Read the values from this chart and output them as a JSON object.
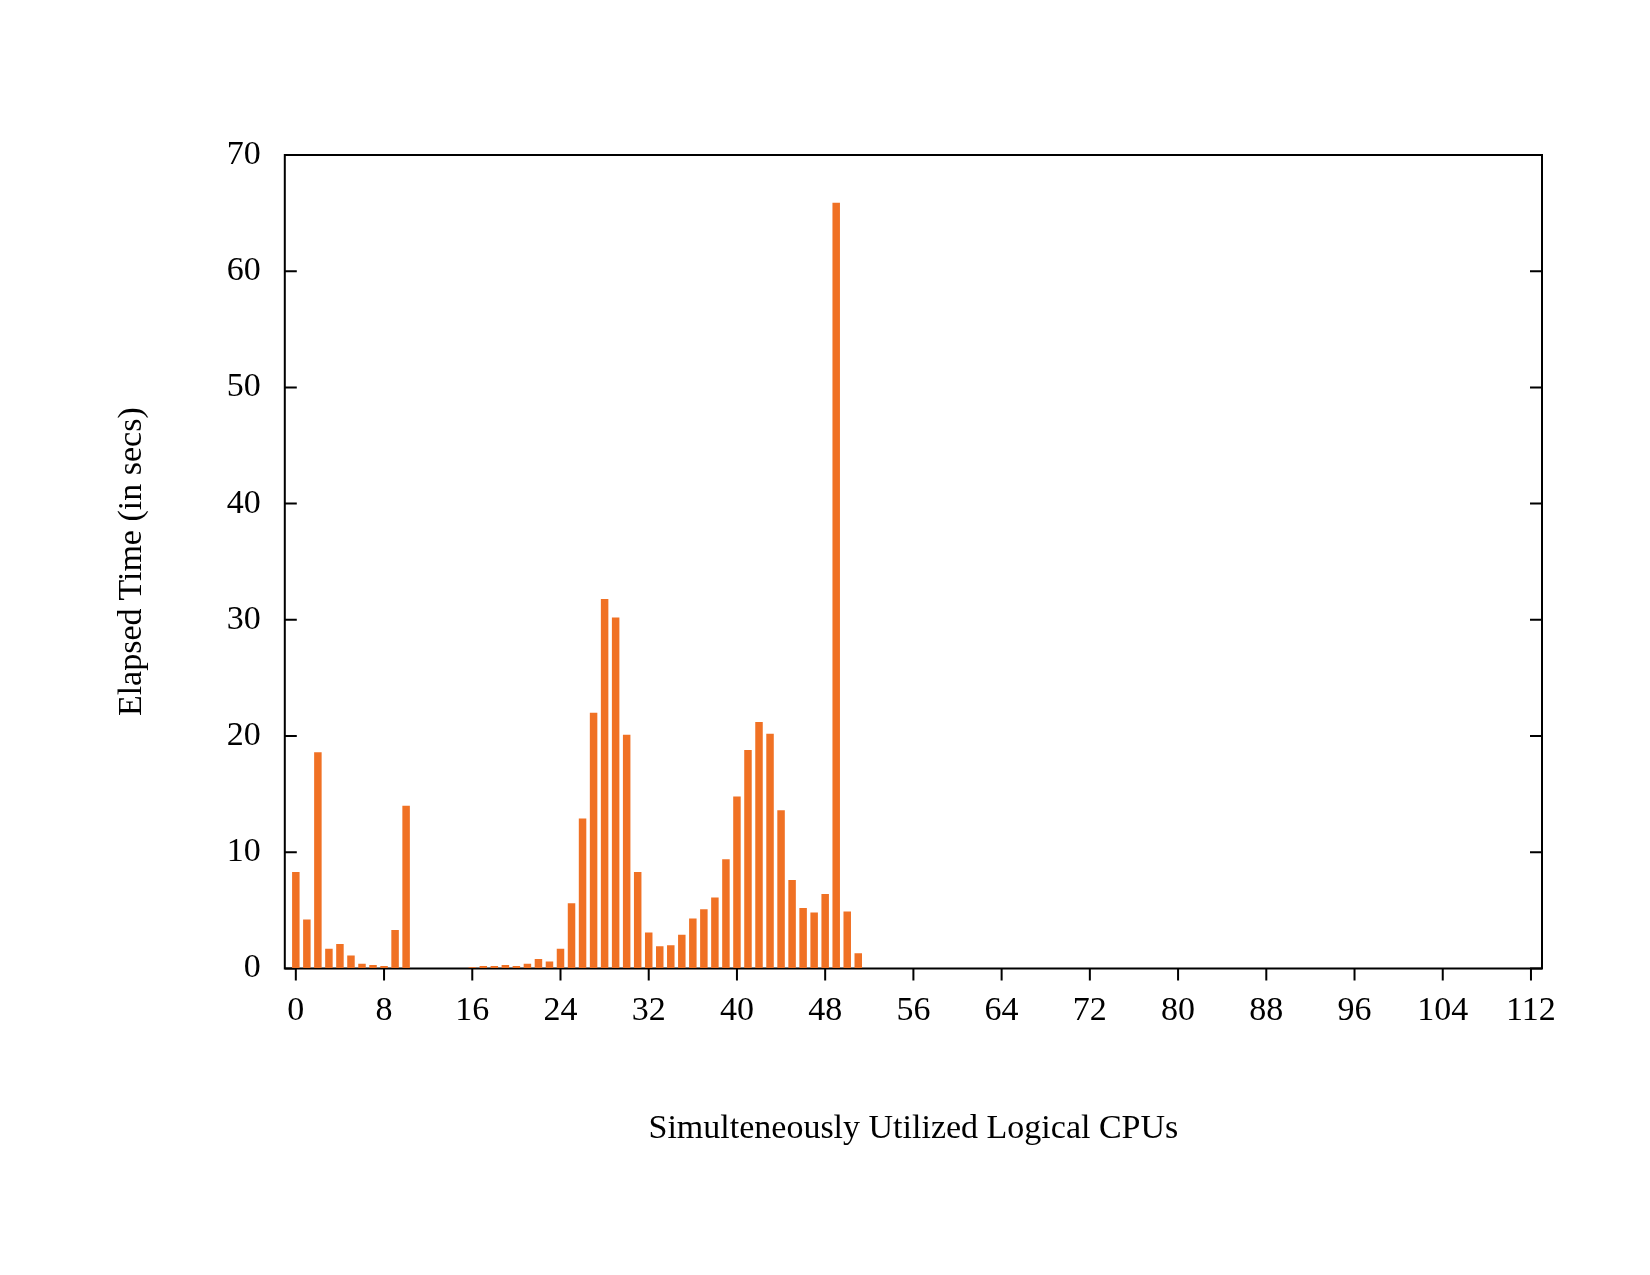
{
  "chart_data": {
    "type": "bar",
    "xlabel": "Simulteneously Utilized Logical CPUs",
    "ylabel": "Elapsed Time (in secs)",
    "x": [
      0,
      1,
      2,
      3,
      4,
      5,
      6,
      7,
      8,
      9,
      10,
      16,
      17,
      18,
      19,
      20,
      21,
      22,
      23,
      24,
      25,
      26,
      27,
      28,
      29,
      30,
      31,
      32,
      33,
      34,
      35,
      36,
      37,
      38,
      39,
      40,
      41,
      42,
      43,
      44,
      45,
      46,
      47,
      48,
      49,
      50,
      51
    ],
    "values": [
      8.3,
      4.2,
      18.6,
      1.7,
      2.1,
      1.1,
      0.4,
      0.3,
      0.2,
      3.3,
      14.0,
      0.1,
      0.2,
      0.2,
      0.3,
      0.2,
      0.4,
      0.8,
      0.6,
      1.7,
      5.6,
      12.9,
      22.0,
      31.8,
      30.2,
      20.1,
      8.3,
      3.1,
      1.9,
      2.0,
      2.9,
      4.3,
      5.1,
      6.1,
      9.4,
      14.8,
      18.8,
      21.2,
      20.2,
      13.6,
      7.6,
      5.2,
      4.8,
      6.4,
      65.9,
      4.9,
      1.3
    ],
    "color": "#f07124",
    "xlim": [
      -1,
      113
    ],
    "xticks": [
      0,
      8,
      16,
      24,
      32,
      40,
      48,
      56,
      64,
      72,
      80,
      88,
      96,
      104,
      112
    ],
    "ylim": [
      0,
      70
    ],
    "yticks": [
      0,
      10,
      20,
      30,
      40,
      50,
      60,
      70
    ],
    "grid": false,
    "legend": false
  }
}
